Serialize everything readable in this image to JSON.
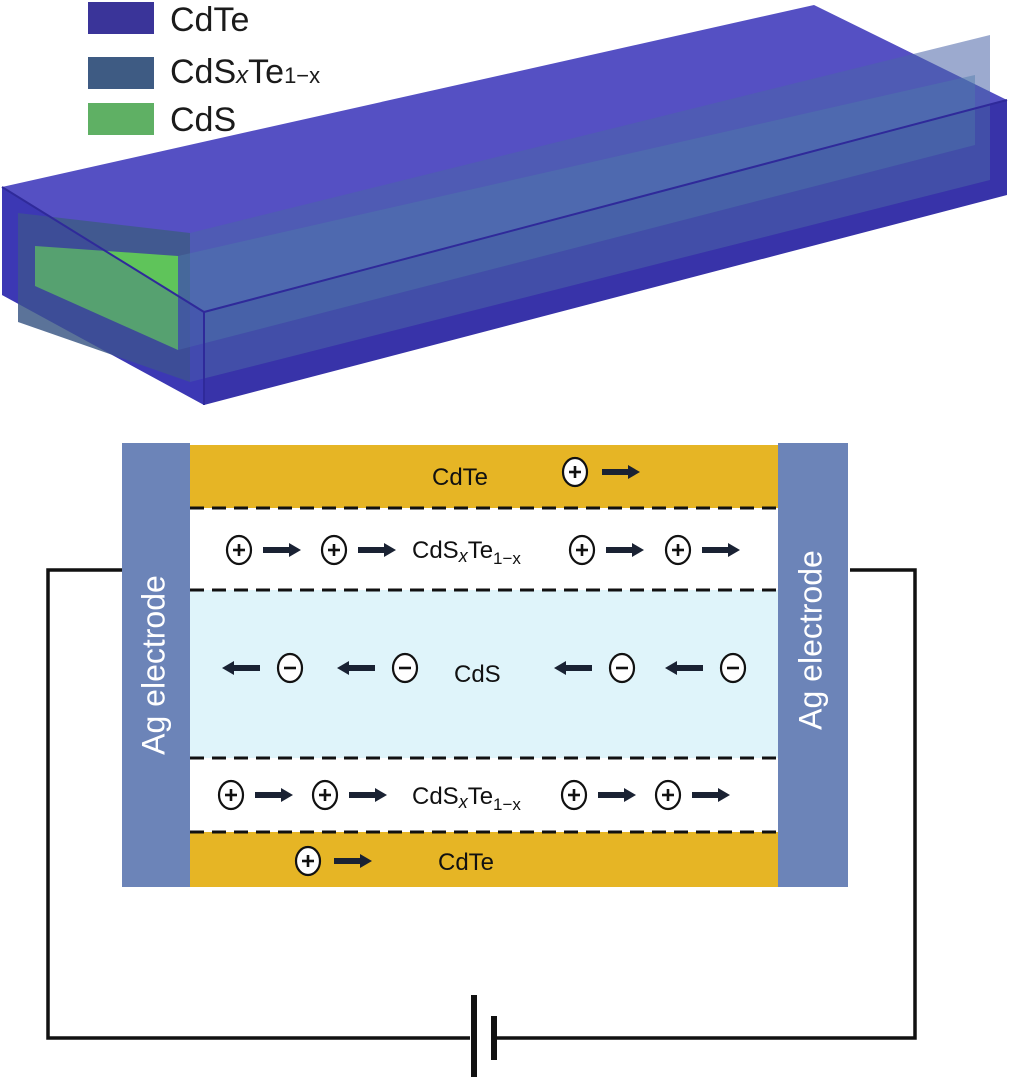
{
  "legend": {
    "items": [
      {
        "label_main": "CdTe",
        "label_sub1": "",
        "label_mid": "",
        "label_sub2": "",
        "color": "#3a3499"
      },
      {
        "label_main": "CdS",
        "label_sub1": "x",
        "label_mid": "Te",
        "label_sub2": "1−x",
        "color": "#3e5b83"
      },
      {
        "label_main": "CdS",
        "label_sub1": "",
        "label_mid": "",
        "label_sub2": "",
        "color": "#5fb064"
      }
    ]
  },
  "colors": {
    "cdte_3d": "#3f3bb4",
    "cdte_layer": "#e6b525",
    "cdsxte_layer": "#ffffff",
    "cds_layer": "#dff4fa",
    "electrode": "#6c84b8",
    "wire": "#111111"
  },
  "device": {
    "left_electrode": "Ag electrode",
    "right_electrode": "Ag electrode",
    "top_cdte": "CdTe",
    "bottom_cdte": "CdTe",
    "cds": "CdS",
    "cdsxte_main": "CdS",
    "cdsxte_sub1": "x",
    "cdsxte_mid": "Te",
    "cdsxte_sub2": "1−x",
    "hole_symbol": "+",
    "electron_symbol": "−"
  },
  "icons": [
    "hole-carrier-icon",
    "electron-carrier-icon",
    "right-arrow-icon",
    "left-arrow-icon",
    "battery-icon"
  ]
}
